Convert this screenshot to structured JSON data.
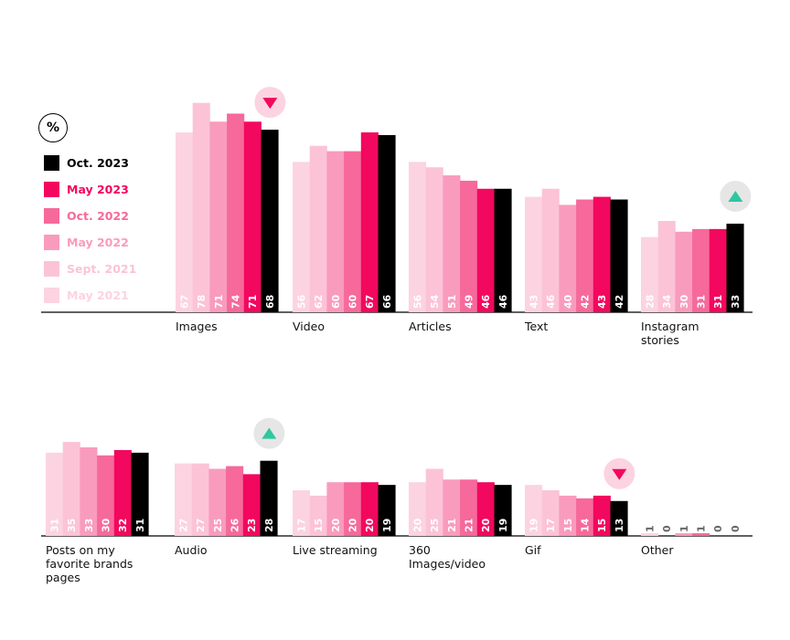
{
  "chart_data": {
    "type": "bar",
    "unit_label": "%",
    "series": [
      {
        "name": "May 2021",
        "color": "#fcd3e1"
      },
      {
        "name": "Sept. 2021",
        "color": "#fcc3d7"
      },
      {
        "name": "May 2022",
        "color": "#f99bbd"
      },
      {
        "name": "Oct. 2022",
        "color": "#f6699a"
      },
      {
        "name": "May 2023",
        "color": "#f2085e"
      },
      {
        "name": "Oct. 2023",
        "color": "#000000"
      }
    ],
    "categories": [
      {
        "label": [
          "Images"
        ],
        "values": [
          67,
          78,
          71,
          74,
          71,
          68
        ],
        "marker": "down"
      },
      {
        "label": [
          "Video"
        ],
        "values": [
          56,
          62,
          60,
          60,
          67,
          66
        ],
        "marker": null
      },
      {
        "label": [
          "Articles"
        ],
        "values": [
          56,
          54,
          51,
          49,
          46,
          46
        ],
        "marker": null
      },
      {
        "label": [
          "Text"
        ],
        "values": [
          43,
          46,
          40,
          42,
          43,
          42
        ],
        "marker": null
      },
      {
        "label": [
          "Instagram",
          "stories"
        ],
        "values": [
          28,
          34,
          30,
          31,
          31,
          33
        ],
        "marker": "up"
      },
      {
        "label": [
          "Posts on my",
          "favorite brands",
          "pages"
        ],
        "values": [
          31,
          35,
          33,
          30,
          32,
          31
        ],
        "marker": null
      },
      {
        "label": [
          "Audio"
        ],
        "values": [
          27,
          27,
          25,
          26,
          23,
          28
        ],
        "marker": "up"
      },
      {
        "label": [
          "Live streaming"
        ],
        "values": [
          17,
          15,
          20,
          20,
          20,
          19
        ],
        "marker": null
      },
      {
        "label": [
          "360",
          "Images/video"
        ],
        "values": [
          20,
          25,
          21,
          21,
          20,
          19
        ],
        "marker": null
      },
      {
        "label": [
          "Gif"
        ],
        "values": [
          19,
          17,
          15,
          14,
          15,
          13
        ],
        "marker": "down"
      },
      {
        "label": [
          "Other"
        ],
        "values": [
          1,
          0,
          1,
          1,
          0,
          0
        ],
        "marker": null
      }
    ],
    "marker_colors": {
      "down": "#f2085e",
      "down_bg": "#fcd3e1",
      "up": "#2ec7a0",
      "up_bg": "#e6e6e6"
    }
  }
}
